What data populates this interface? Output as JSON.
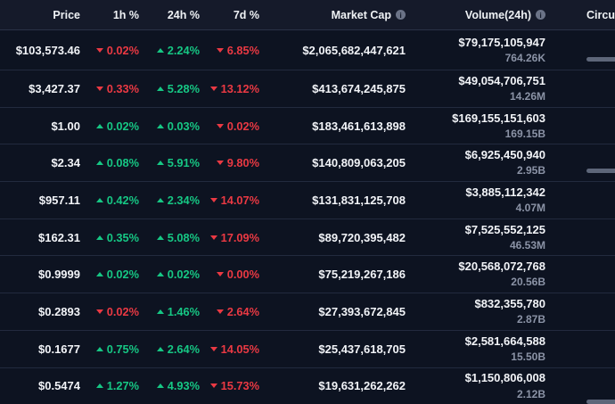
{
  "colors": {
    "up_green": "#16c784",
    "down_red": "#ea3943",
    "row_background": "#0d1321",
    "header_background": "#151a2a",
    "secondary_text": "#8b93a6",
    "supply_bar_gray": "#5d6679"
  },
  "icons": {
    "info_glyph": "i"
  },
  "table": {
    "columns": [
      {
        "id": "price",
        "label": "Price",
        "info": false
      },
      {
        "id": "change_1h",
        "label": "1h %",
        "info": false
      },
      {
        "id": "change_24h",
        "label": "24h %",
        "info": false
      },
      {
        "id": "change_7d",
        "label": "7d %",
        "info": false
      },
      {
        "id": "market_cap",
        "label": "Market Cap",
        "info": true
      },
      {
        "id": "volume_24h",
        "label": "Volume(24h)",
        "info": true
      },
      {
        "id": "circulating_supply",
        "label": "Circulating Supply",
        "info": false
      }
    ],
    "rows": [
      {
        "price": "$103,573.46",
        "change_1h": {
          "dir": "down",
          "value": "0.02%"
        },
        "change_24h": {
          "dir": "up",
          "value": "2.24%"
        },
        "change_7d": {
          "dir": "down",
          "value": "6.85%"
        },
        "market_cap": "$2,065,682,447,621",
        "volume": "$79,175,105,947",
        "volume_sub": "764.26K",
        "supply_bar": true
      },
      {
        "price": "$3,427.37",
        "change_1h": {
          "dir": "down",
          "value": "0.33%"
        },
        "change_24h": {
          "dir": "up",
          "value": "5.28%"
        },
        "change_7d": {
          "dir": "down",
          "value": "13.12%"
        },
        "market_cap": "$413,674,245,875",
        "volume": "$49,054,706,751",
        "volume_sub": "14.26M",
        "supply_bar": false
      },
      {
        "price": "$1.00",
        "change_1h": {
          "dir": "up",
          "value": "0.02%"
        },
        "change_24h": {
          "dir": "up",
          "value": "0.03%"
        },
        "change_7d": {
          "dir": "down",
          "value": "0.02%"
        },
        "market_cap": "$183,461,613,898",
        "volume": "$169,155,151,603",
        "volume_sub": "169.15B",
        "supply_bar": false
      },
      {
        "price": "$2.34",
        "change_1h": {
          "dir": "up",
          "value": "0.08%"
        },
        "change_24h": {
          "dir": "up",
          "value": "5.91%"
        },
        "change_7d": {
          "dir": "down",
          "value": "9.80%"
        },
        "market_cap": "$140,809,063,205",
        "volume": "$6,925,450,940",
        "volume_sub": "2.95B",
        "supply_bar": true
      },
      {
        "price": "$957.11",
        "change_1h": {
          "dir": "up",
          "value": "0.42%"
        },
        "change_24h": {
          "dir": "up",
          "value": "2.34%"
        },
        "change_7d": {
          "dir": "down",
          "value": "14.07%"
        },
        "market_cap": "$131,831,125,708",
        "volume": "$3,885,112,342",
        "volume_sub": "4.07M",
        "supply_bar": false
      },
      {
        "price": "$162.31",
        "change_1h": {
          "dir": "up",
          "value": "0.35%"
        },
        "change_24h": {
          "dir": "up",
          "value": "5.08%"
        },
        "change_7d": {
          "dir": "down",
          "value": "17.09%"
        },
        "market_cap": "$89,720,395,482",
        "volume": "$7,525,552,125",
        "volume_sub": "46.53M",
        "supply_bar": false
      },
      {
        "price": "$0.9999",
        "change_1h": {
          "dir": "up",
          "value": "0.02%"
        },
        "change_24h": {
          "dir": "up",
          "value": "0.02%"
        },
        "change_7d": {
          "dir": "down",
          "value": "0.00%"
        },
        "market_cap": "$75,219,267,186",
        "volume": "$20,568,072,768",
        "volume_sub": "20.56B",
        "supply_bar": false
      },
      {
        "price": "$0.2893",
        "change_1h": {
          "dir": "down",
          "value": "0.02%"
        },
        "change_24h": {
          "dir": "up",
          "value": "1.46%"
        },
        "change_7d": {
          "dir": "down",
          "value": "2.64%"
        },
        "market_cap": "$27,393,672,845",
        "volume": "$832,355,780",
        "volume_sub": "2.87B",
        "supply_bar": false
      },
      {
        "price": "$0.1677",
        "change_1h": {
          "dir": "up",
          "value": "0.75%"
        },
        "change_24h": {
          "dir": "up",
          "value": "2.64%"
        },
        "change_7d": {
          "dir": "down",
          "value": "14.05%"
        },
        "market_cap": "$25,437,618,705",
        "volume": "$2,581,664,588",
        "volume_sub": "15.50B",
        "supply_bar": false
      },
      {
        "price": "$0.5474",
        "change_1h": {
          "dir": "up",
          "value": "1.27%"
        },
        "change_24h": {
          "dir": "up",
          "value": "4.93%"
        },
        "change_7d": {
          "dir": "down",
          "value": "15.73%"
        },
        "market_cap": "$19,631,262,262",
        "volume": "$1,150,806,008",
        "volume_sub": "2.12B",
        "supply_bar": true
      }
    ]
  }
}
